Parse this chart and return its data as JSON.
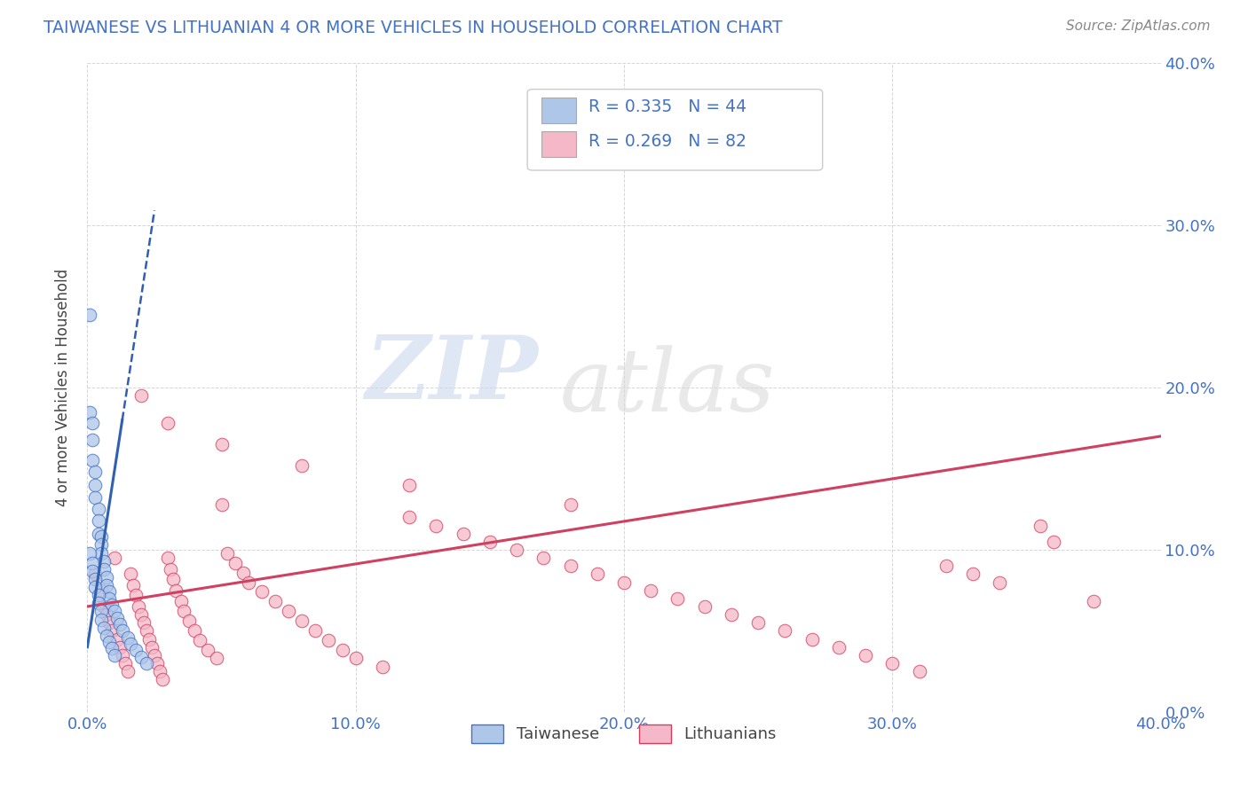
{
  "title": "TAIWANESE VS LITHUANIAN 4 OR MORE VEHICLES IN HOUSEHOLD CORRELATION CHART",
  "source": "Source: ZipAtlas.com",
  "ylabel": "4 or more Vehicles in Household",
  "watermark_zip": "ZIP",
  "watermark_atlas": "atlas",
  "taiwanese_R": 0.335,
  "taiwanese_N": 44,
  "lithuanian_R": 0.269,
  "lithuanian_N": 82,
  "taiwanese_color": "#aec6e8",
  "taiwanese_edge": "#4472c4",
  "lithuanian_color": "#f4b8c8",
  "lithuanian_edge": "#d04060",
  "tw_line_color": "#3060b0",
  "lt_line_color": "#d04060",
  "background_color": "#ffffff",
  "grid_color": "#cccccc",
  "title_color": "#4472c4",
  "stat_color": "#4472c4",
  "xlim": [
    0.0,
    0.4
  ],
  "ylim": [
    0.0,
    0.4
  ],
  "yticks": [
    0.0,
    0.1,
    0.2,
    0.3,
    0.4
  ],
  "xticks": [
    0.0,
    0.1,
    0.2,
    0.3,
    0.4
  ],
  "taiwanese_x": [
    0.001,
    0.001,
    0.002,
    0.002,
    0.002,
    0.003,
    0.003,
    0.003,
    0.004,
    0.004,
    0.004,
    0.005,
    0.005,
    0.005,
    0.006,
    0.006,
    0.007,
    0.007,
    0.008,
    0.008,
    0.009,
    0.01,
    0.011,
    0.012,
    0.013,
    0.015,
    0.016,
    0.018,
    0.02,
    0.022,
    0.001,
    0.002,
    0.002,
    0.003,
    0.003,
    0.004,
    0.004,
    0.005,
    0.005,
    0.006,
    0.007,
    0.008,
    0.009,
    0.01
  ],
  "taiwanese_y": [
    0.245,
    0.185,
    0.178,
    0.168,
    0.155,
    0.148,
    0.14,
    0.132,
    0.125,
    0.118,
    0.11,
    0.108,
    0.103,
    0.098,
    0.093,
    0.088,
    0.083,
    0.078,
    0.074,
    0.07,
    0.066,
    0.062,
    0.058,
    0.054,
    0.05,
    0.046,
    0.042,
    0.038,
    0.034,
    0.03,
    0.098,
    0.092,
    0.087,
    0.082,
    0.077,
    0.072,
    0.067,
    0.062,
    0.057,
    0.052,
    0.047,
    0.043,
    0.039,
    0.035
  ],
  "lithuanian_x": [
    0.003,
    0.005,
    0.006,
    0.007,
    0.008,
    0.009,
    0.01,
    0.011,
    0.012,
    0.013,
    0.014,
    0.015,
    0.016,
    0.017,
    0.018,
    0.019,
    0.02,
    0.021,
    0.022,
    0.023,
    0.024,
    0.025,
    0.026,
    0.027,
    0.028,
    0.03,
    0.031,
    0.032,
    0.033,
    0.035,
    0.036,
    0.038,
    0.04,
    0.042,
    0.045,
    0.048,
    0.05,
    0.052,
    0.055,
    0.058,
    0.06,
    0.065,
    0.07,
    0.075,
    0.08,
    0.085,
    0.09,
    0.095,
    0.1,
    0.11,
    0.12,
    0.13,
    0.14,
    0.15,
    0.16,
    0.17,
    0.18,
    0.19,
    0.2,
    0.21,
    0.22,
    0.23,
    0.24,
    0.25,
    0.26,
    0.27,
    0.28,
    0.29,
    0.3,
    0.31,
    0.32,
    0.33,
    0.34,
    0.355,
    0.36,
    0.375,
    0.02,
    0.03,
    0.05,
    0.08,
    0.12,
    0.18
  ],
  "lithuanian_y": [
    0.085,
    0.075,
    0.065,
    0.06,
    0.055,
    0.05,
    0.095,
    0.045,
    0.04,
    0.035,
    0.03,
    0.025,
    0.085,
    0.078,
    0.072,
    0.065,
    0.06,
    0.055,
    0.05,
    0.045,
    0.04,
    0.035,
    0.03,
    0.025,
    0.02,
    0.095,
    0.088,
    0.082,
    0.075,
    0.068,
    0.062,
    0.056,
    0.05,
    0.044,
    0.038,
    0.033,
    0.128,
    0.098,
    0.092,
    0.086,
    0.08,
    0.074,
    0.068,
    0.062,
    0.056,
    0.05,
    0.044,
    0.038,
    0.033,
    0.028,
    0.12,
    0.115,
    0.11,
    0.105,
    0.1,
    0.095,
    0.09,
    0.085,
    0.08,
    0.075,
    0.07,
    0.065,
    0.06,
    0.055,
    0.05,
    0.045,
    0.04,
    0.035,
    0.03,
    0.025,
    0.09,
    0.085,
    0.08,
    0.115,
    0.105,
    0.068,
    0.195,
    0.178,
    0.165,
    0.152,
    0.14,
    0.128
  ]
}
